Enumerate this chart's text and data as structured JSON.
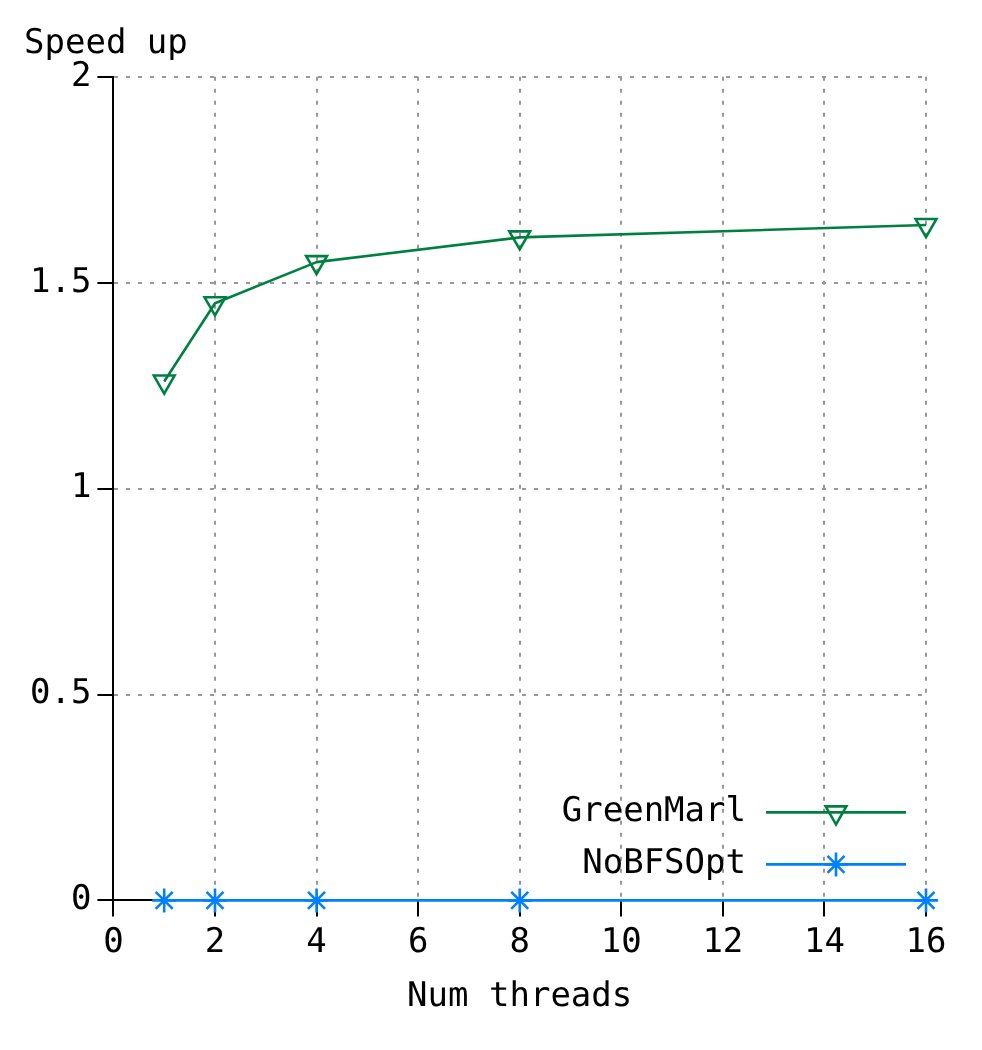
{
  "chart_data": {
    "type": "line",
    "title": "Speed up",
    "xlabel": "Num threads",
    "x": [
      1,
      2,
      4,
      8,
      16
    ],
    "series": [
      {
        "name": "GreenMarl",
        "color": "#008040",
        "values": [
          1.26,
          1.45,
          1.55,
          1.61,
          1.64
        ],
        "marker": "triangle"
      },
      {
        "name": "NoBFSOpt",
        "color": "#0080ff",
        "values": [
          0,
          0,
          0,
          0,
          0
        ],
        "marker": "cross"
      }
    ],
    "xlim": [
      0,
      16
    ],
    "xticks": [
      0,
      2,
      4,
      6,
      8,
      10,
      12,
      14,
      16
    ],
    "ylim": [
      0,
      2
    ],
    "yticks": [
      0,
      0.5,
      1,
      1.5,
      2
    ],
    "grid": true,
    "legend": "bottom right",
    "line_style": "solid"
  }
}
